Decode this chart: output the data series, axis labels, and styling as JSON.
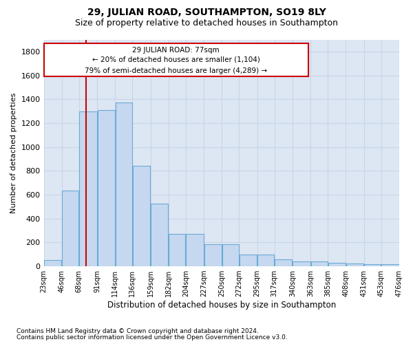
{
  "title1": "29, JULIAN ROAD, SOUTHAMPTON, SO19 8LY",
  "title2": "Size of property relative to detached houses in Southampton",
  "xlabel": "Distribution of detached houses by size in Southampton",
  "ylabel": "Number of detached properties",
  "footnote1": "Contains HM Land Registry data © Crown copyright and database right 2024.",
  "footnote2": "Contains public sector information licensed under the Open Government Licence v3.0.",
  "annotation_title": "29 JULIAN ROAD: 77sqm",
  "annotation_line1": "← 20% of detached houses are smaller (1,104)",
  "annotation_line2": "79% of semi-detached houses are larger (4,289) →",
  "property_size": 77,
  "bar_starts": [
    23,
    46,
    68,
    91,
    114,
    136,
    159,
    182,
    204,
    227,
    250,
    272,
    295,
    317,
    340,
    363,
    385,
    408,
    431,
    453
  ],
  "bar_widths": [
    23,
    22,
    23,
    23,
    22,
    23,
    23,
    22,
    23,
    23,
    22,
    23,
    22,
    23,
    23,
    22,
    23,
    23,
    22,
    23
  ],
  "bar_heights": [
    50,
    635,
    1300,
    1310,
    1375,
    845,
    525,
    270,
    270,
    185,
    185,
    100,
    100,
    60,
    40,
    40,
    30,
    25,
    15,
    15
  ],
  "bar_color": "#c5d8f0",
  "bar_edge_color": "#6aaad4",
  "vline_color": "#cc0000",
  "vline_x": 77,
  "ylim": [
    0,
    1900
  ],
  "xlim": [
    23,
    476
  ],
  "yticks": [
    0,
    200,
    400,
    600,
    800,
    1000,
    1200,
    1400,
    1600,
    1800
  ],
  "xtick_labels": [
    "23sqm",
    "46sqm",
    "68sqm",
    "91sqm",
    "114sqm",
    "136sqm",
    "159sqm",
    "182sqm",
    "204sqm",
    "227sqm",
    "250sqm",
    "272sqm",
    "295sqm",
    "317sqm",
    "340sqm",
    "363sqm",
    "385sqm",
    "408sqm",
    "431sqm",
    "453sqm",
    "476sqm"
  ],
  "xtick_positions": [
    23,
    46,
    68,
    91,
    114,
    136,
    159,
    182,
    204,
    227,
    250,
    272,
    295,
    317,
    340,
    363,
    385,
    408,
    431,
    453,
    476
  ],
  "grid_color": "#c8d4e8",
  "bg_color": "#dde6f3",
  "title1_fontsize": 10,
  "title2_fontsize": 9,
  "xlabel_fontsize": 8.5,
  "ylabel_fontsize": 8,
  "annotation_box_edgecolor": "#cc0000",
  "ann_x0": 23,
  "ann_x1": 360,
  "ann_y0": 1590,
  "ann_y1": 1870,
  "footnote_fontsize": 6.5
}
